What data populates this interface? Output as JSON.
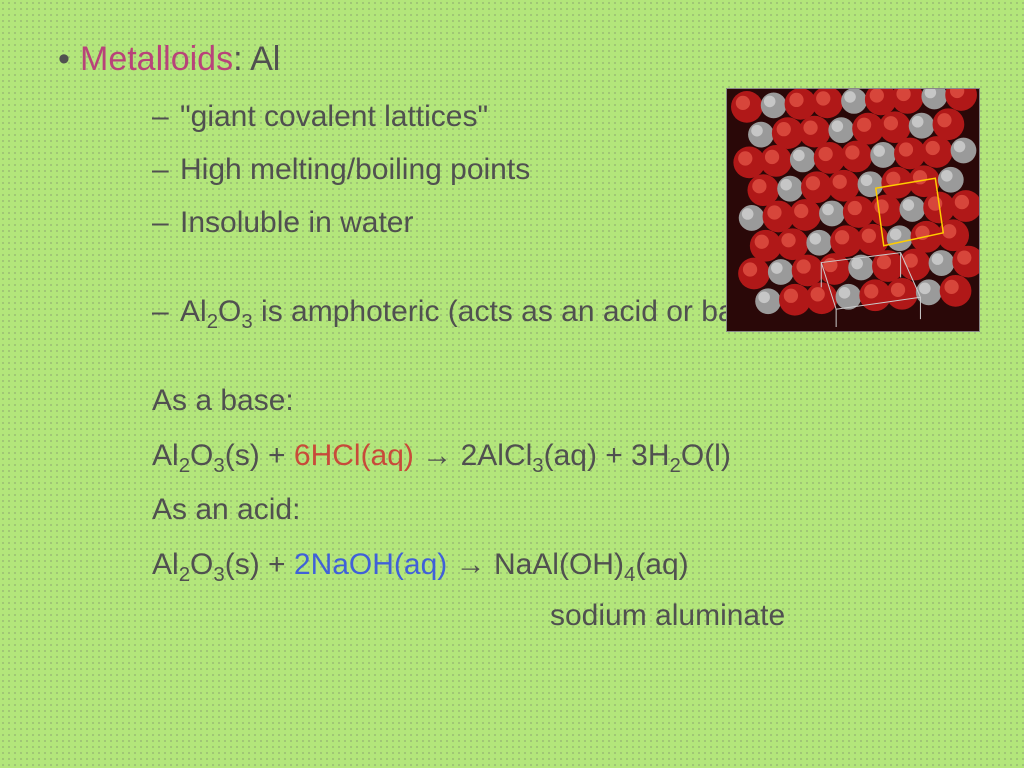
{
  "title": {
    "highlight": "Metalloids",
    "rest": ": Al"
  },
  "bullets": [
    "\"giant covalent lattices\"",
    "High melting/boiling points",
    "Insoluble in water"
  ],
  "amphoteric": {
    "formula_pre": "Al",
    "sub1": "2",
    "mid": "O",
    "sub2": "3",
    "rest": " is amphoteric (acts as an acid or base)"
  },
  "base_label": "As a base:",
  "acid_label": "As an acid:",
  "eq1": {
    "p1": "Al",
    "s1": "2",
    "p2": "O",
    "s2": "3",
    "p3": "(s) + ",
    "red": "6HCl(aq)",
    "p4": " → 2AlCl",
    "s3": "3",
    "p5": "(aq) + 3H",
    "s4": "2",
    "p6": "O(l)"
  },
  "eq2": {
    "p1": "Al",
    "s1": "2",
    "p2": "O",
    "s2": "3",
    "p3": "(s) + ",
    "blue": "2NaOH(aq)",
    "p4": " →  NaAl(OH)",
    "s3": "4",
    "p5": "(aq)"
  },
  "product_name": "sodium aluminate",
  "image": {
    "atom_colors": {
      "oxygen": "#b01818",
      "aluminum": "#9a9a9a"
    },
    "cell_outline": "#ffcc00",
    "bg": "#2a0808"
  }
}
